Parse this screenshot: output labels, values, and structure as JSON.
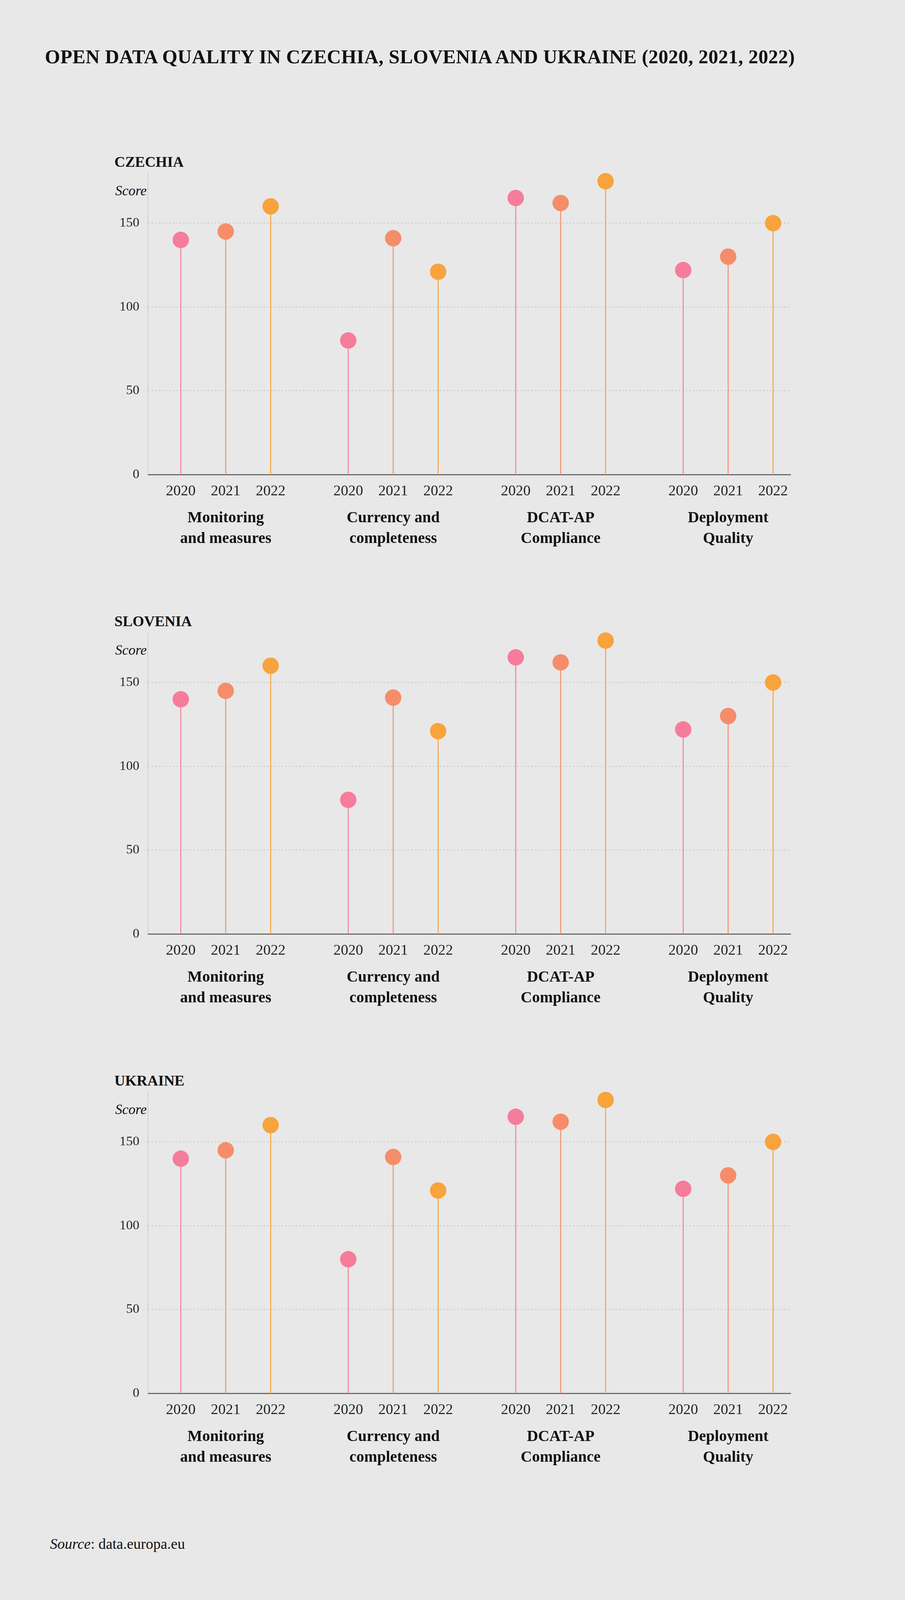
{
  "title": "OPEN DATA QUALITY IN CZECHIA, SLOVENIA AND UKRAINE (2020, 2021, 2022)",
  "source": "Source: data.europa.eu",
  "chart_data": [
    {
      "type": "lollipop",
      "title": "CZECHIA",
      "ylabel": "Score",
      "categories": [
        "Monitoring\nand measures",
        "Currency and\ncompleteness",
        "DCAT-AP\nCompliance",
        "Deployment\nQuality"
      ],
      "series": [
        {
          "name": "2020",
          "color": "#f67c9b",
          "values": [
            140,
            80,
            165,
            122
          ]
        },
        {
          "name": "2021",
          "color": "#f58d6a",
          "values": [
            145,
            141,
            162,
            130
          ]
        },
        {
          "name": "2022",
          "color": "#f8a33c",
          "values": [
            160,
            121,
            175,
            150
          ]
        }
      ],
      "ylim": [
        0,
        180
      ],
      "yticks": [
        0,
        50,
        100,
        150
      ],
      "grid": true
    },
    {
      "type": "lollipop",
      "title": "SLOVENIA",
      "ylabel": "Score",
      "categories": [
        "Monitoring\nand measures",
        "Currency and\ncompleteness",
        "DCAT-AP\nCompliance",
        "Deployment\nQuality"
      ],
      "series": [
        {
          "name": "2020",
          "color": "#f67c9b",
          "values": [
            140,
            80,
            165,
            122
          ]
        },
        {
          "name": "2021",
          "color": "#f58d6a",
          "values": [
            145,
            141,
            162,
            130
          ]
        },
        {
          "name": "2022",
          "color": "#f8a33c",
          "values": [
            160,
            121,
            175,
            150
          ]
        }
      ],
      "ylim": [
        0,
        180
      ],
      "yticks": [
        0,
        50,
        100,
        150
      ],
      "grid": true
    },
    {
      "type": "lollipop",
      "title": "UKRAINE",
      "ylabel": "Score",
      "categories": [
        "Monitoring\nand measures",
        "Currency and\ncompleteness",
        "DCAT-AP\nCompliance",
        "Deployment\nQuality"
      ],
      "series": [
        {
          "name": "2020",
          "color": "#f67c9b",
          "values": [
            140,
            80,
            165,
            122
          ]
        },
        {
          "name": "2021",
          "color": "#f58d6a",
          "values": [
            145,
            141,
            162,
            130
          ]
        },
        {
          "name": "2022",
          "color": "#f8a33c",
          "values": [
            160,
            121,
            175,
            150
          ]
        }
      ],
      "ylim": [
        0,
        180
      ],
      "yticks": [
        0,
        50,
        100,
        150
      ],
      "grid": true
    }
  ]
}
